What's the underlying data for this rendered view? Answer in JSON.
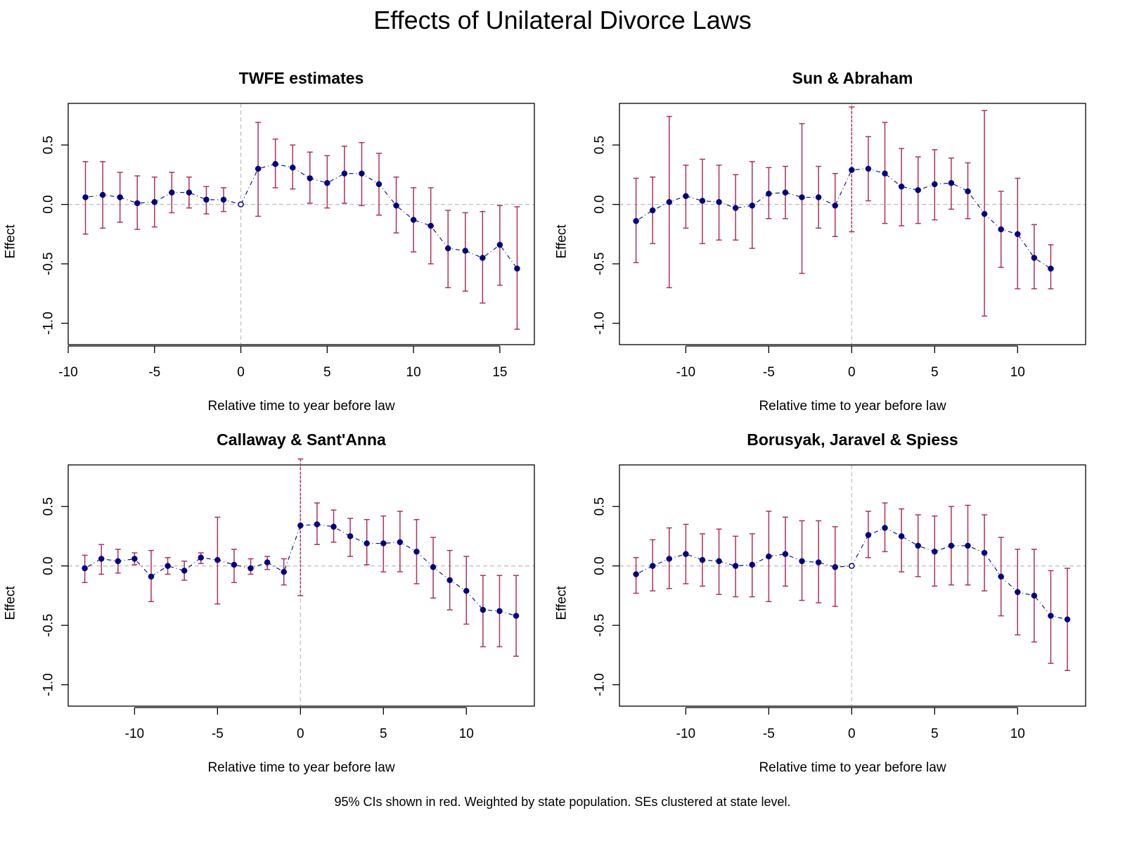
{
  "title": "Effects of Unilateral Divorce Laws",
  "footnote": "95% CIs shown in red. Weighted by state population. SEs clustered at state level.",
  "colors": {
    "point": "#00007F",
    "ci": "#B0305C",
    "refline": "#BEBEBE",
    "axis": "#000000"
  },
  "chart_data": [
    {
      "type": "scatter",
      "title": "TWFE estimates",
      "xlabel": "Relative time to year before law",
      "ylabel": "Effect",
      "xlim": [
        -10,
        17
      ],
      "ylim": [
        -1.18,
        0.85
      ],
      "xticks": [
        -10,
        -5,
        0,
        5,
        10,
        15
      ],
      "yticks": [
        -1.0,
        -0.5,
        0.0,
        0.5
      ],
      "ytick_labels": [
        "-1.0",
        "-0.5",
        "0.0",
        "0.5"
      ],
      "ref_vline_color": "gray",
      "x": [
        -9,
        -8,
        -7,
        -6,
        -5,
        -4,
        -3,
        -2,
        -1,
        0,
        1,
        2,
        3,
        4,
        5,
        6,
        7,
        8,
        9,
        10,
        11,
        12,
        13,
        14,
        15,
        16
      ],
      "estimate": [
        0.06,
        0.08,
        0.06,
        0.01,
        0.02,
        0.1,
        0.1,
        0.04,
        0.04,
        0.0,
        0.3,
        0.34,
        0.31,
        0.22,
        0.18,
        0.26,
        0.26,
        0.17,
        -0.01,
        -0.13,
        -0.18,
        -0.37,
        -0.39,
        -0.45,
        -0.34,
        -0.54
      ],
      "ci_low": [
        -0.25,
        -0.2,
        -0.15,
        -0.21,
        -0.19,
        -0.07,
        -0.03,
        -0.08,
        -0.06,
        null,
        -0.1,
        0.14,
        0.13,
        0.01,
        -0.03,
        0.01,
        -0.01,
        -0.09,
        -0.24,
        -0.4,
        -0.5,
        -0.7,
        -0.73,
        -0.83,
        -0.68,
        -1.05
      ],
      "ci_high": [
        0.36,
        0.36,
        0.27,
        0.24,
        0.23,
        0.27,
        0.23,
        0.15,
        0.14,
        null,
        0.69,
        0.55,
        0.5,
        0.44,
        0.41,
        0.49,
        0.52,
        0.43,
        0.23,
        0.14,
        0.14,
        -0.05,
        -0.07,
        -0.06,
        -0.01,
        -0.02
      ]
    },
    {
      "type": "scatter",
      "title": "Sun & Abraham",
      "xlabel": "Relative time to year before law",
      "ylabel": "Effect",
      "xlim": [
        -14,
        14.1
      ],
      "ylim": [
        -1.18,
        0.85
      ],
      "xticks": [
        -10,
        -5,
        0,
        5,
        10
      ],
      "yticks": [
        -1.0,
        -0.5,
        0.0,
        0.5
      ],
      "ytick_labels": [
        "-1.0",
        "-0.5",
        "0.0",
        "0.5"
      ],
      "ref_vline_color": "red",
      "x": [
        -13,
        -12,
        -11,
        -10,
        -9,
        -8,
        -7,
        -6,
        -5,
        -4,
        -3,
        -2,
        -1,
        0,
        1,
        2,
        3,
        4,
        5,
        6,
        7,
        8,
        9,
        10,
        11,
        12
      ],
      "estimate": [
        -0.14,
        -0.05,
        0.02,
        0.07,
        0.03,
        0.02,
        -0.03,
        -0.01,
        0.09,
        0.1,
        0.06,
        0.06,
        -0.01,
        0.29,
        0.3,
        0.26,
        0.15,
        0.12,
        0.17,
        0.18,
        0.11,
        -0.08,
        -0.21,
        -0.25,
        -0.45,
        -0.54
      ],
      "ci_low": [
        -0.49,
        -0.33,
        -0.7,
        -0.2,
        -0.33,
        -0.3,
        -0.3,
        -0.37,
        -0.12,
        -0.12,
        -0.58,
        -0.2,
        -0.27,
        -0.23,
        0.03,
        -0.16,
        -0.18,
        -0.16,
        -0.13,
        -0.04,
        -0.12,
        -0.94,
        -0.53,
        -0.71,
        -0.71,
        -0.71
      ],
      "ci_high": [
        0.22,
        0.23,
        0.74,
        0.33,
        0.38,
        0.33,
        0.25,
        0.36,
        0.31,
        0.32,
        0.68,
        0.32,
        0.26,
        0.82,
        0.57,
        0.69,
        0.47,
        0.4,
        0.46,
        0.39,
        0.35,
        0.79,
        0.11,
        0.22,
        -0.17,
        -0.34
      ]
    },
    {
      "type": "scatter",
      "title": "Callaway & Sant'Anna",
      "xlabel": "Relative time to year before law",
      "ylabel": "Effect",
      "xlim": [
        -14,
        14.1
      ],
      "ylim": [
        -1.18,
        0.85
      ],
      "xticks": [
        -10,
        -5,
        0,
        5,
        10
      ],
      "yticks": [
        -1.0,
        -0.5,
        0.0,
        0.5
      ],
      "ytick_labels": [
        "-1.0",
        "-0.5",
        "0.0",
        "0.5"
      ],
      "ref_vline_color": "red",
      "x": [
        -13,
        -12,
        -11,
        -10,
        -9,
        -8,
        -7,
        -6,
        -5,
        -4,
        -3,
        -2,
        -1,
        0,
        1,
        2,
        3,
        4,
        5,
        6,
        7,
        8,
        9,
        10,
        11,
        12,
        13
      ],
      "estimate": [
        -0.02,
        0.06,
        0.04,
        0.06,
        -0.09,
        0.0,
        -0.04,
        0.07,
        0.05,
        0.01,
        -0.02,
        0.03,
        -0.05,
        0.34,
        0.35,
        0.33,
        0.25,
        0.19,
        0.19,
        0.2,
        0.12,
        -0.01,
        -0.12,
        -0.21,
        -0.37,
        -0.38,
        -0.42
      ],
      "ci_low": [
        -0.14,
        -0.07,
        -0.06,
        0.01,
        -0.3,
        -0.07,
        -0.12,
        0.02,
        -0.32,
        -0.14,
        -0.07,
        -0.03,
        -0.16,
        -0.25,
        0.18,
        0.2,
        0.08,
        0.01,
        -0.05,
        -0.05,
        -0.15,
        -0.27,
        -0.37,
        -0.49,
        -0.68,
        -0.68,
        -0.76
      ],
      "ci_high": [
        0.09,
        0.18,
        0.14,
        0.11,
        0.13,
        0.07,
        0.04,
        0.11,
        0.41,
        0.14,
        0.06,
        0.08,
        0.06,
        0.9,
        0.53,
        0.47,
        0.4,
        0.39,
        0.42,
        0.46,
        0.39,
        0.24,
        0.13,
        0.08,
        -0.08,
        -0.08,
        -0.08
      ]
    },
    {
      "type": "scatter",
      "title": "Borusyak, Jaravel & Spiess",
      "xlabel": "Relative time to year before law",
      "ylabel": "Effect",
      "xlim": [
        -14,
        14.1
      ],
      "ylim": [
        -1.18,
        0.85
      ],
      "xticks": [
        -10,
        -5,
        0,
        5,
        10
      ],
      "yticks": [
        -1.0,
        -0.5,
        0.0,
        0.5
      ],
      "ytick_labels": [
        "-1.0",
        "-0.5",
        "0.0",
        "0.5"
      ],
      "ref_vline_color": "gray",
      "x": [
        -13,
        -12,
        -11,
        -10,
        -9,
        -8,
        -7,
        -6,
        -5,
        -4,
        -3,
        -2,
        -1,
        0,
        1,
        2,
        3,
        4,
        5,
        6,
        7,
        8,
        9,
        10,
        11,
        12,
        13
      ],
      "estimate": [
        -0.07,
        0.0,
        0.06,
        0.1,
        0.05,
        0.04,
        0.0,
        0.01,
        0.08,
        0.1,
        0.04,
        0.03,
        -0.01,
        0.0,
        0.26,
        0.32,
        0.25,
        0.17,
        0.12,
        0.17,
        0.17,
        0.11,
        -0.09,
        -0.22,
        -0.25,
        -0.42,
        -0.45
      ],
      "ci_low": [
        -0.23,
        -0.21,
        -0.19,
        -0.15,
        -0.17,
        -0.24,
        -0.26,
        -0.26,
        -0.3,
        -0.17,
        -0.29,
        -0.31,
        -0.34,
        null,
        0.07,
        0.12,
        -0.05,
        -0.09,
        -0.17,
        -0.16,
        -0.16,
        -0.21,
        -0.42,
        -0.58,
        -0.64,
        -0.82,
        -0.88
      ],
      "ci_high": [
        0.07,
        0.22,
        0.32,
        0.35,
        0.27,
        0.31,
        0.25,
        0.27,
        0.46,
        0.41,
        0.38,
        0.38,
        0.33,
        null,
        0.46,
        0.53,
        0.48,
        0.43,
        0.42,
        0.5,
        0.51,
        0.43,
        0.24,
        0.14,
        0.14,
        -0.04,
        -0.02
      ]
    }
  ]
}
